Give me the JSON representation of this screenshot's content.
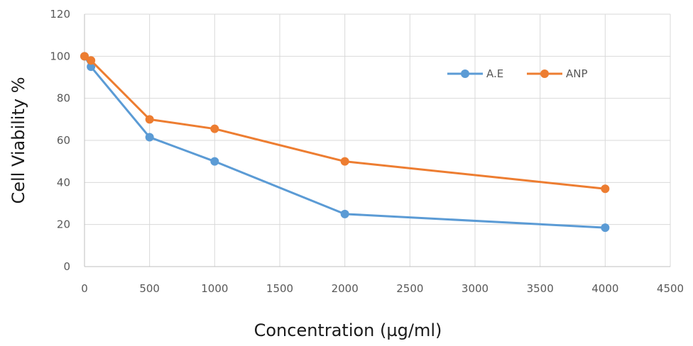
{
  "chart_data": {
    "type": "line",
    "title": "",
    "xlabel": "Concentration (µg/ml)",
    "ylabel": "Cell Viability %",
    "xlim": [
      0,
      4500
    ],
    "ylim": [
      0,
      120
    ],
    "xticks": [
      0,
      500,
      1000,
      1500,
      2000,
      2500,
      3000,
      3500,
      4000,
      4500
    ],
    "yticks": [
      0,
      20,
      40,
      60,
      80,
      100,
      120
    ],
    "grid": true,
    "legend_position": "top-right",
    "series": [
      {
        "name": "A.E",
        "color": "#5b9bd5",
        "x": [
          0,
          50,
          500,
          1000,
          2000,
          4000
        ],
        "y": [
          100,
          95,
          61.5,
          50,
          25,
          18.5
        ]
      },
      {
        "name": "ANP",
        "color": "#ed7d31",
        "x": [
          0,
          50,
          500,
          1000,
          2000,
          4000
        ],
        "y": [
          100,
          98,
          70,
          65.5,
          50,
          37
        ]
      }
    ]
  }
}
